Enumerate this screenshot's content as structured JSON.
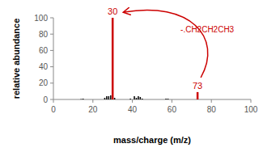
{
  "chart_data": {
    "type": "bar",
    "x_label": "mass/charge (m/z)",
    "y_label": "relative abundance",
    "x": [
      14,
      15,
      26,
      27,
      28,
      29,
      30,
      31,
      39,
      41,
      42,
      43,
      44,
      45,
      57,
      58,
      73
    ],
    "values": [
      0.5,
      1,
      2,
      4,
      4,
      5,
      100,
      2,
      1,
      4,
      2,
      4,
      3,
      1,
      1,
      1,
      9
    ],
    "colors": [
      "#000000",
      "#000000",
      "#000000",
      "#000000",
      "#000000",
      "#000000",
      "#cc0000",
      "#000000",
      "#000000",
      "#000000",
      "#000000",
      "#000000",
      "#000000",
      "#000000",
      "#000000",
      "#000000",
      "#cc0000"
    ],
    "xlim": [
      0,
      100
    ],
    "xticks": [
      0,
      20,
      40,
      60,
      80,
      100
    ],
    "ylim": [
      0,
      100
    ],
    "yticks": [
      0,
      20,
      40,
      60,
      80,
      100
    ],
    "grid": false,
    "annotations": [
      {
        "text": "30",
        "x": 30,
        "y": 100
      },
      {
        "text": "73",
        "x": 73,
        "y": 9
      },
      {
        "text": "-.CH2CH2CH3",
        "from": 73,
        "to": 30
      }
    ]
  }
}
